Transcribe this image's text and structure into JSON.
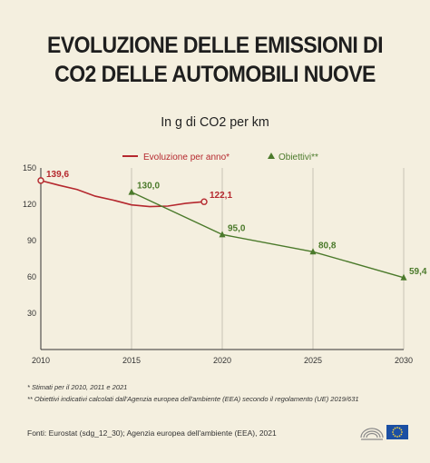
{
  "title_line1": "EVOLUZIONE DELLE EMISSIONI DI",
  "title_line2": "CO2 DELLE AUTOMOBILI NUOVE",
  "subtitle": "In g di CO2 per km",
  "notes": [
    "* Stimati per il 2010, 2011 e 2021",
    "** Obiettivi indicativi calcolati dall'Agenzia europea dell'ambiente (EEA) secondo il regolamento (UE) 2019/631"
  ],
  "source": "Fonti: Eurostat (sdg_12_30); Agenzia europea dell'ambiente (EEA), 2021",
  "colors": {
    "red": "#b5282e",
    "green": "#4b7a2b",
    "background": "#f4efdf",
    "eu_blue": "#1b4fa3"
  },
  "chart_data": {
    "type": "line",
    "x_range": [
      2010,
      2030
    ],
    "ylim": [
      0,
      150
    ],
    "x_ticks": [
      2010,
      2015,
      2020,
      2025,
      2030
    ],
    "y_ticks": [
      30,
      60,
      90,
      120,
      150
    ],
    "grid": "vertical",
    "legend_position": "top",
    "series": [
      {
        "name": "Evoluzione per anno*",
        "color": "#b5282e",
        "marker": "circle",
        "x": [
          2010,
          2011,
          2012,
          2013,
          2014,
          2015,
          2016,
          2017,
          2018,
          2019
        ],
        "y": [
          139.6,
          135.7,
          132.2,
          126.7,
          123.4,
          119.5,
          118.1,
          118.5,
          120.8,
          122.1
        ],
        "labels": [
          {
            "x": 2010,
            "y": 139.6,
            "text": "139,6"
          },
          {
            "x": 2019,
            "y": 122.1,
            "text": "122,1"
          }
        ]
      },
      {
        "name": "Obiettivi**",
        "color": "#4b7a2b",
        "marker": "triangle",
        "x": [
          2015,
          2020,
          2025,
          2030
        ],
        "y": [
          130.0,
          95.0,
          80.8,
          59.4
        ],
        "labels": [
          {
            "x": 2015,
            "y": 130.0,
            "text": "130,0"
          },
          {
            "x": 2020,
            "y": 95.0,
            "text": "95,0"
          },
          {
            "x": 2025,
            "y": 80.8,
            "text": "80,8"
          },
          {
            "x": 2030,
            "y": 59.4,
            "text": "59,4"
          }
        ]
      }
    ]
  }
}
